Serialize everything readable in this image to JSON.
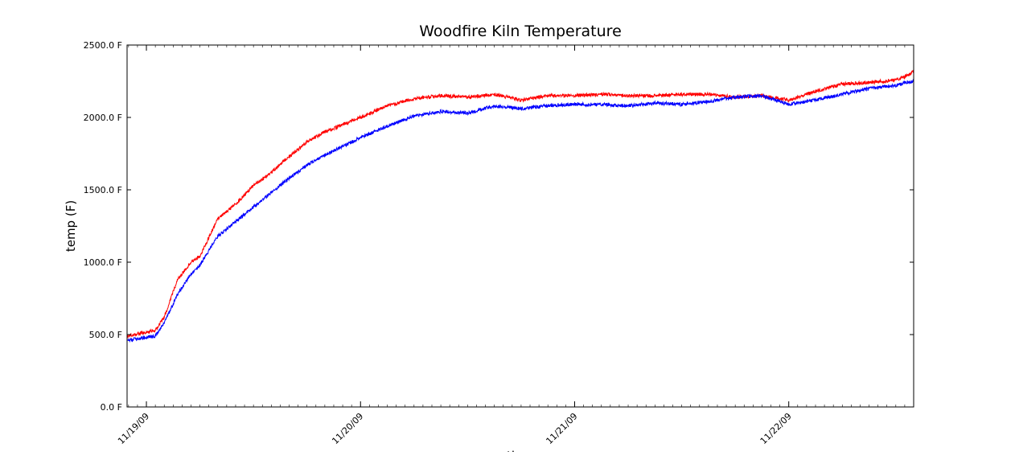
{
  "chart_data": {
    "type": "line",
    "title": "Woodfire Kiln Temperature",
    "xlabel": "time",
    "ylabel": "temp (F)",
    "ylim": [
      0,
      2500
    ],
    "xlim": [
      "2009-11-18T21:50",
      "2009-11-22T14:00"
    ],
    "y_ticks": [
      0,
      500,
      1000,
      1500,
      2000,
      2500
    ],
    "y_tick_labels": [
      "0.0 F",
      "500.0 F",
      "1000.0 F",
      "1500.0 F",
      "2000.0 F",
      "2500.0 F"
    ],
    "x_ticks": [
      "2009-11-19T00:00",
      "2009-11-20T00:00",
      "2009-11-21T00:00",
      "2009-11-22T00:00"
    ],
    "x_tick_labels": [
      "11/19/09",
      "11/20/09",
      "11/21/09",
      "11/22/09"
    ],
    "grid": false,
    "series": [
      {
        "color": "#ff0000",
        "x": [
          "2009-11-18T21:50",
          "2009-11-19T01:00",
          "2009-11-19T02:00",
          "2009-11-19T03:30",
          "2009-11-19T05:00",
          "2009-11-19T06:00",
          "2009-11-19T08:00",
          "2009-11-19T10:00",
          "2009-11-19T12:00",
          "2009-11-19T14:00",
          "2009-11-19T16:00",
          "2009-11-19T18:00",
          "2009-11-19T20:00",
          "2009-11-19T22:00",
          "2009-11-20T00:00",
          "2009-11-20T03:00",
          "2009-11-20T06:00",
          "2009-11-20T09:00",
          "2009-11-20T12:00",
          "2009-11-20T15:00",
          "2009-11-20T18:00",
          "2009-11-20T21:00",
          "2009-11-21T00:00",
          "2009-11-21T03:00",
          "2009-11-21T06:00",
          "2009-11-21T09:00",
          "2009-11-21T12:00",
          "2009-11-21T15:00",
          "2009-11-21T18:00",
          "2009-11-21T21:00",
          "2009-11-22T00:00",
          "2009-11-22T03:00",
          "2009-11-22T06:00",
          "2009-11-22T09:00",
          "2009-11-22T12:00",
          "2009-11-22T13:00",
          "2009-11-22T14:00"
        ],
        "y": [
          490,
          530,
          620,
          880,
          1000,
          1040,
          1300,
          1400,
          1530,
          1620,
          1730,
          1830,
          1900,
          1950,
          2000,
          2080,
          2130,
          2150,
          2140,
          2160,
          2120,
          2150,
          2150,
          2160,
          2150,
          2150,
          2160,
          2160,
          2140,
          2150,
          2120,
          2180,
          2230,
          2240,
          2260,
          2280,
          2320
        ]
      },
      {
        "color": "#0000ff",
        "x": [
          "2009-11-18T21:50",
          "2009-11-19T01:00",
          "2009-11-19T02:00",
          "2009-11-19T03:30",
          "2009-11-19T05:00",
          "2009-11-19T06:00",
          "2009-11-19T08:00",
          "2009-11-19T10:00",
          "2009-11-19T12:00",
          "2009-11-19T14:00",
          "2009-11-19T16:00",
          "2009-11-19T18:00",
          "2009-11-19T20:00",
          "2009-11-19T22:00",
          "2009-11-20T00:00",
          "2009-11-20T03:00",
          "2009-11-20T06:00",
          "2009-11-20T09:00",
          "2009-11-20T12:00",
          "2009-11-20T15:00",
          "2009-11-20T18:00",
          "2009-11-20T21:00",
          "2009-11-21T00:00",
          "2009-11-21T03:00",
          "2009-11-21T06:00",
          "2009-11-21T09:00",
          "2009-11-21T12:00",
          "2009-11-21T15:00",
          "2009-11-21T18:00",
          "2009-11-21T21:00",
          "2009-11-22T00:00",
          "2009-11-22T03:00",
          "2009-11-22T06:00",
          "2009-11-22T09:00",
          "2009-11-22T12:00",
          "2009-11-22T13:00",
          "2009-11-22T14:00"
        ],
        "y": [
          460,
          490,
          580,
          780,
          920,
          980,
          1180,
          1280,
          1380,
          1480,
          1580,
          1670,
          1740,
          1800,
          1860,
          1940,
          2010,
          2040,
          2030,
          2080,
          2060,
          2080,
          2090,
          2090,
          2080,
          2100,
          2090,
          2110,
          2140,
          2150,
          2090,
          2120,
          2160,
          2200,
          2220,
          2240,
          2250
        ]
      }
    ]
  }
}
